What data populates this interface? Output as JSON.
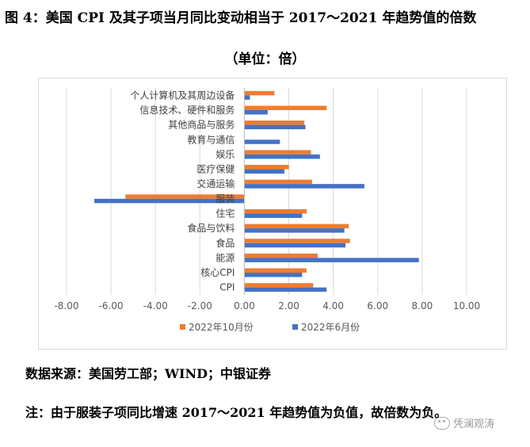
{
  "figure": {
    "title": "图 4：美国 CPI 及其子项当月同比变动相当于 2017～2021 年趋势值的倍数",
    "unit": "（单位：倍）",
    "source": "数据来源：美国劳工部；WIND；中银证券",
    "note": "注：由于服装子项同比增速 2017～2021 年趋势值为负值，故倍数为负。",
    "watermark": "凭澜观涛"
  },
  "colors": {
    "oct": "#ed7d31",
    "jun": "#4472c4",
    "grid": "#d9d9d9",
    "axis": "#595959"
  },
  "chart_data": {
    "type": "bar",
    "orientation": "horizontal",
    "categories": [
      "个人计算机及其周边设备",
      "信息技术、硬件和服务",
      "其他商品与服务",
      "教育与通信",
      "娱乐",
      "医疗保健",
      "交通运输",
      "服装",
      "住宅",
      "食品与饮料",
      "食品",
      "能源",
      "核心CPI",
      "CPI"
    ],
    "series": [
      {
        "name": "2022年10月份",
        "color": "#ed7d31",
        "values": [
          1.35,
          3.7,
          2.7,
          0.0,
          3.0,
          2.0,
          3.05,
          -5.35,
          2.8,
          4.7,
          4.75,
          3.3,
          2.8,
          3.1
        ]
      },
      {
        "name": "2022年6月份",
        "color": "#4472c4",
        "values": [
          0.25,
          1.05,
          2.75,
          1.6,
          3.4,
          1.8,
          5.4,
          -6.75,
          2.6,
          4.5,
          4.55,
          7.85,
          2.6,
          3.7
        ]
      }
    ],
    "xlim": [
      -8,
      10
    ],
    "xticks": [
      -8,
      -6,
      -4,
      -2,
      0,
      2,
      4,
      6,
      8,
      10
    ],
    "xtick_labels": [
      "-8.00",
      "-6.00",
      "-4.00",
      "-2.00",
      "0.00",
      "2.00",
      "4.00",
      "6.00",
      "8.00",
      "10.00"
    ],
    "grid": true,
    "legend_position": "bottom"
  }
}
